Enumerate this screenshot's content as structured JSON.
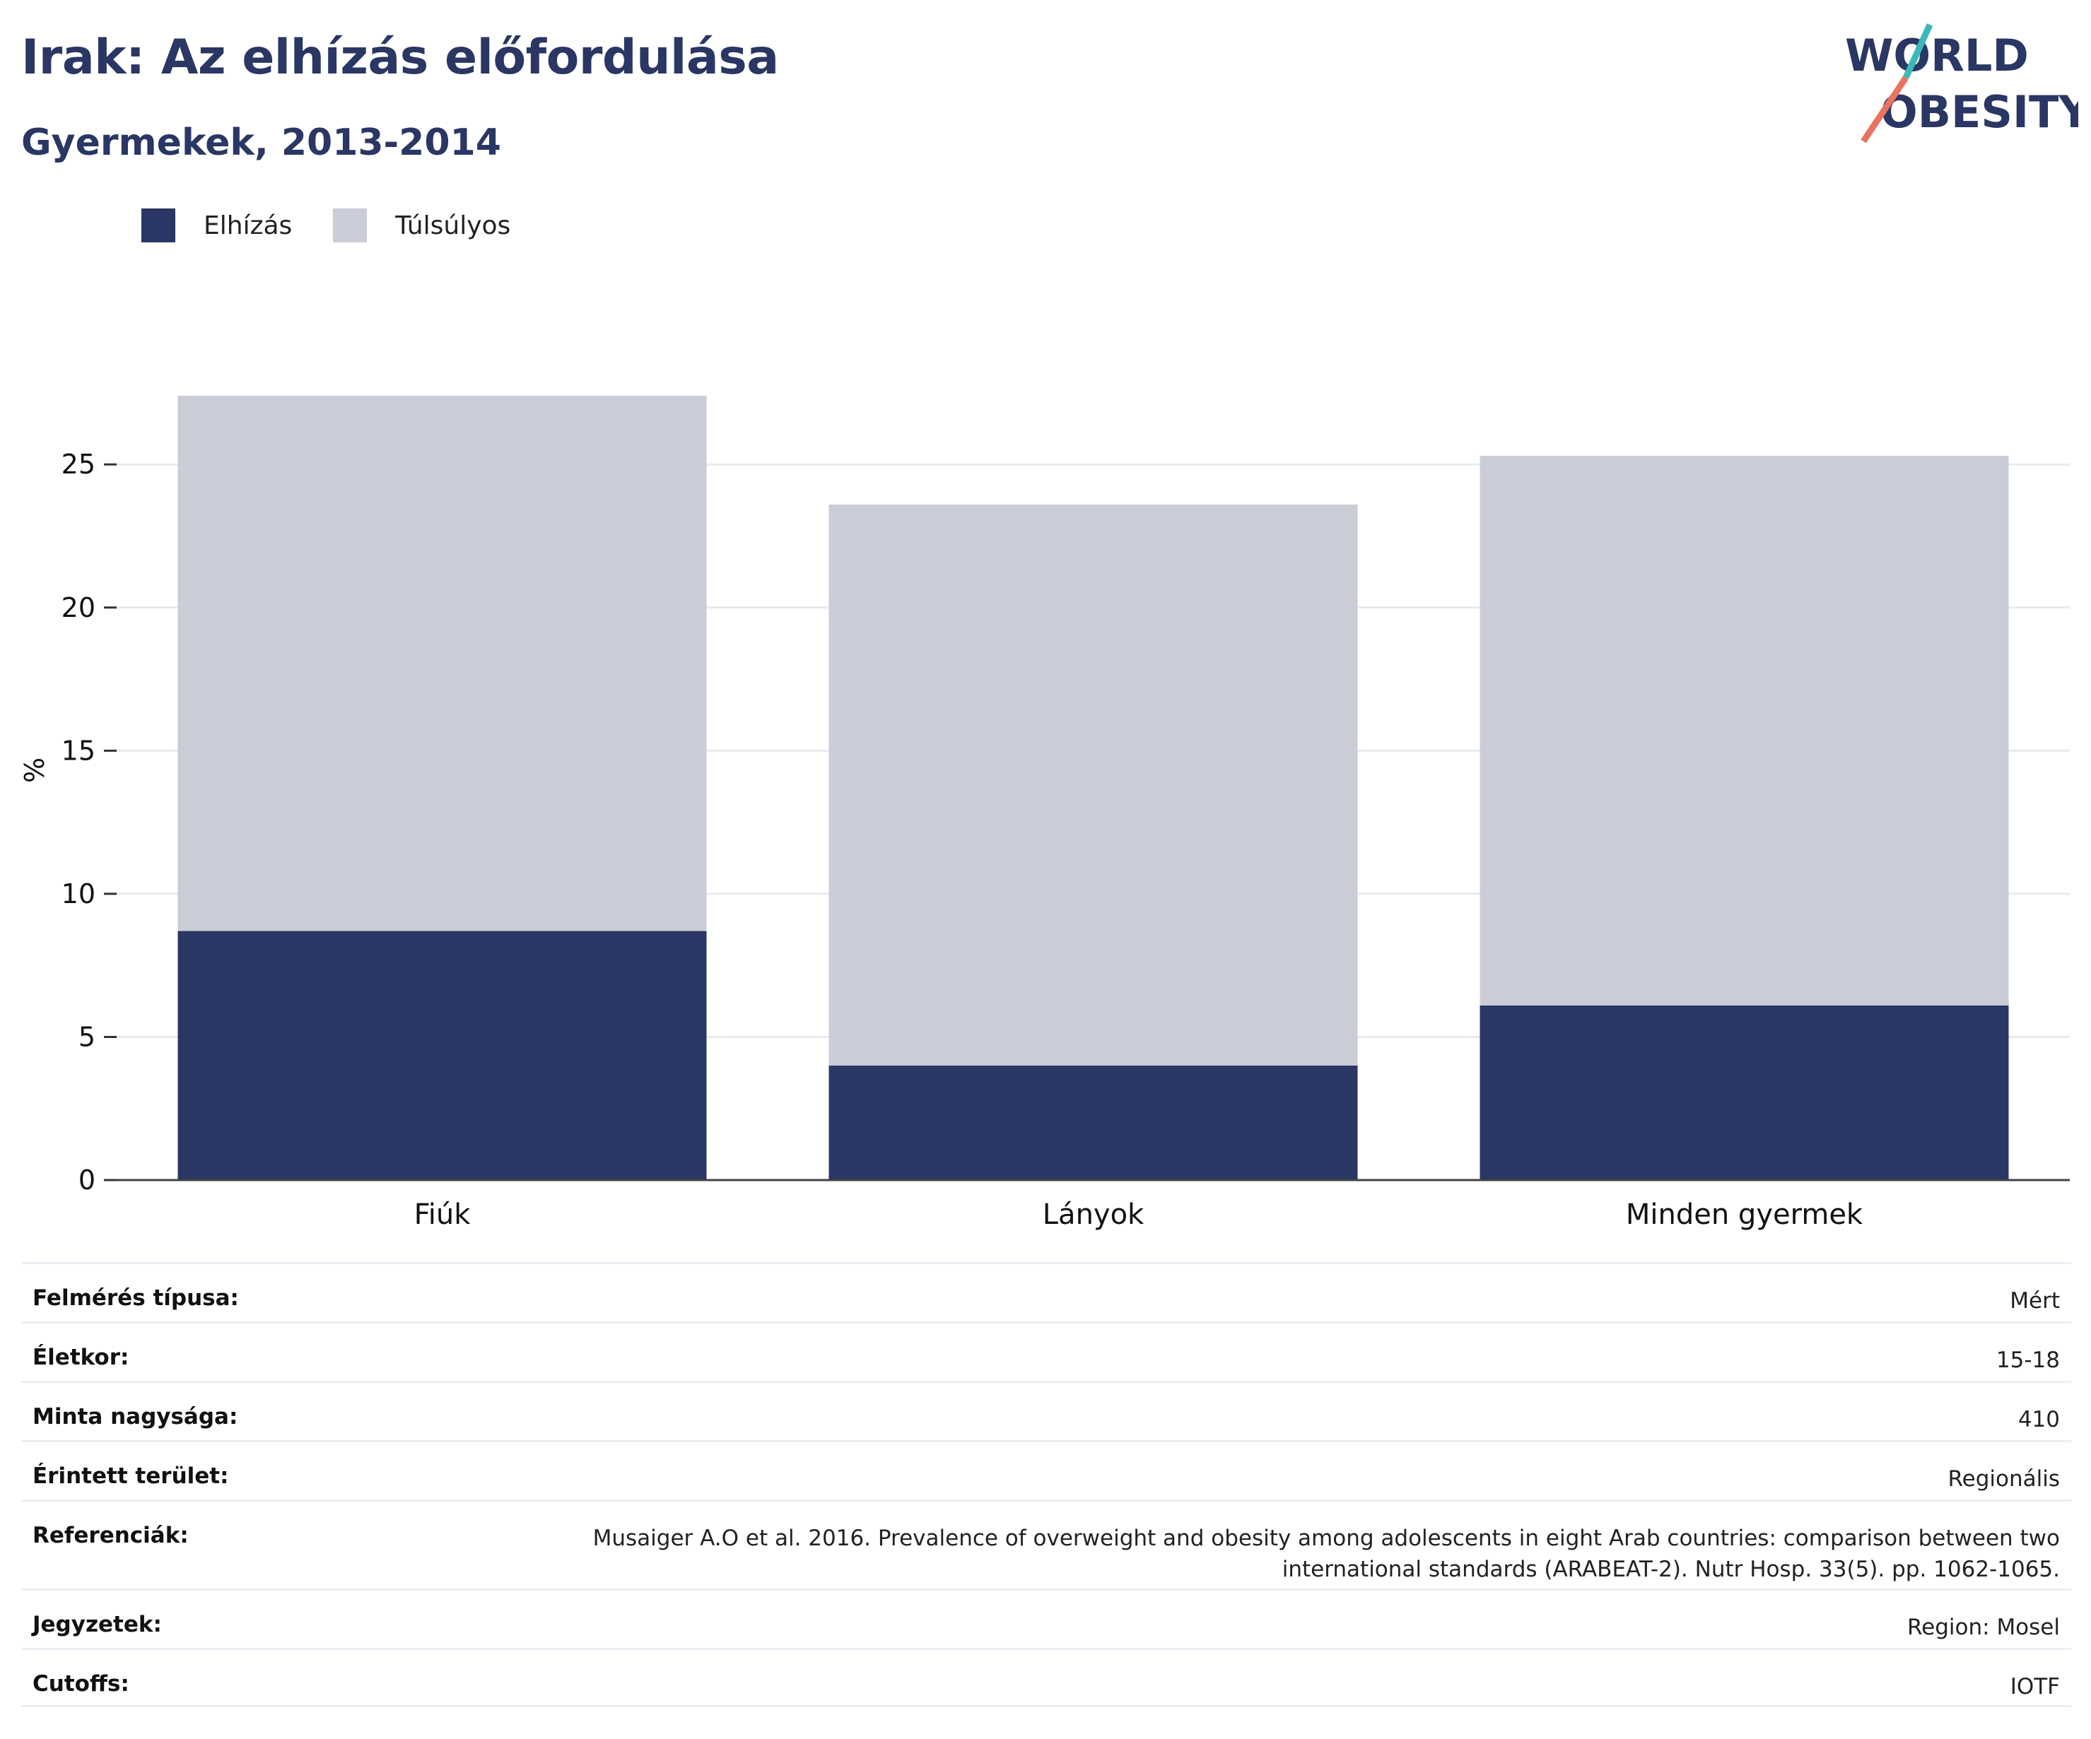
{
  "header": {
    "title": "Irak: Az elhízás előfordulása",
    "subtitle": "Gyermekek, 2013-2014"
  },
  "logo": {
    "line1": "WORLD",
    "line2": "OBESITY",
    "text_color": "#2a3663",
    "slash_teal": "#3bb8b8",
    "slash_coral": "#e8735f"
  },
  "colors": {
    "obesity": "#2a3663",
    "overweight": "#cacdd8"
  },
  "chart_data": {
    "type": "bar",
    "stacked": true,
    "categories": [
      "Fiúk",
      "Lányok",
      "Minden gyermek"
    ],
    "series": [
      {
        "name": "Elhízás",
        "values": [
          8.7,
          4.0,
          6.1
        ]
      },
      {
        "name": "Túlsúlyos",
        "values": [
          18.7,
          19.6,
          19.2
        ]
      }
    ],
    "ylabel": "%",
    "ylim": [
      0,
      27.4
    ],
    "yticks": [
      "0",
      "5",
      "10",
      "15",
      "20",
      "25"
    ],
    "grid": true,
    "legend": "top-left"
  },
  "info": [
    {
      "key": "Felmérés típusa:",
      "value": "Mért"
    },
    {
      "key": "Életkor:",
      "value": "15-18"
    },
    {
      "key": "Minta nagysága:",
      "value": "410"
    },
    {
      "key": "Érintett terület:",
      "value": "Regionális"
    },
    {
      "key": "Referenciák:",
      "value": "Musaiger A.O et al. 2016. Prevalence of overweight and obesity among adolescents in eight Arab countries: comparison between two international standards (ARABEAT-2). Nutr Hosp. 33(5). pp. 1062-1065."
    },
    {
      "key": "Jegyzetek:",
      "value": "Region: Mosel"
    },
    {
      "key": "Cutoffs:",
      "value": "IOTF"
    }
  ]
}
